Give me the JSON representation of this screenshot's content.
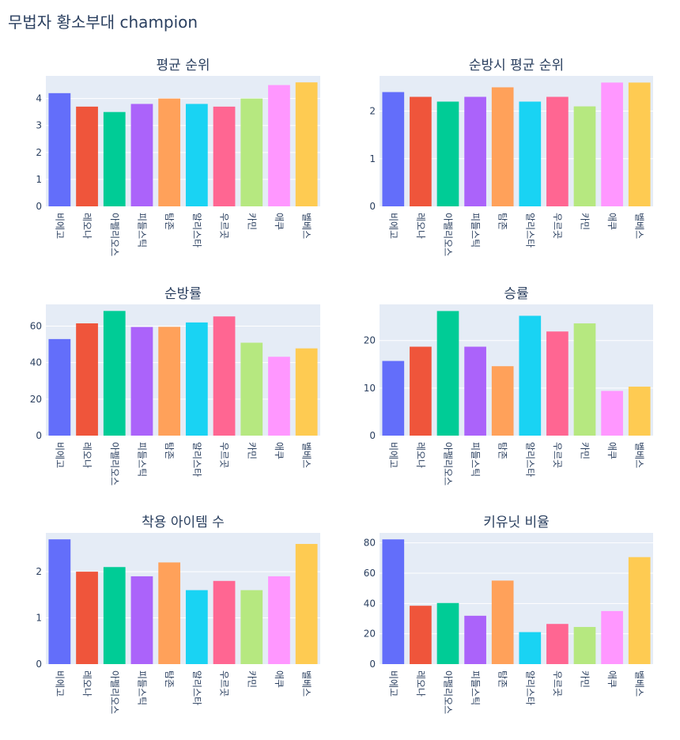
{
  "title": "무법자 황소부대 champion",
  "colors": [
    "#636efa",
    "#ef553b",
    "#00cc96",
    "#ab63fa",
    "#ffa15a",
    "#19d3f3",
    "#ff6692",
    "#b6e880",
    "#ff97ff",
    "#fecb52"
  ],
  "chart_data": [
    {
      "type": "bar",
      "title": "평균 순위",
      "categories": [
        "비에고",
        "레오나",
        "아펠리오스",
        "피들스틱",
        "탐존",
        "알리스타",
        "우르곳",
        "카민",
        "애쿠",
        "벨베스"
      ],
      "values": [
        4.2,
        3.7,
        3.5,
        3.8,
        4.0,
        3.8,
        3.7,
        4.0,
        4.5,
        4.6
      ],
      "ylim": [
        0,
        4.84
      ],
      "yticks": [
        0,
        1,
        2,
        3,
        4
      ]
    },
    {
      "type": "bar",
      "title": "순방시 평균 순위",
      "categories": [
        "비에고",
        "레오나",
        "아펠리오스",
        "피들스틱",
        "탐존",
        "알리스타",
        "우르곳",
        "카민",
        "애쿠",
        "벨베스"
      ],
      "values": [
        2.4,
        2.3,
        2.2,
        2.3,
        2.5,
        2.2,
        2.3,
        2.1,
        2.6,
        2.6
      ],
      "ylim": [
        0,
        2.74
      ],
      "yticks": [
        0,
        1,
        2
      ]
    },
    {
      "type": "bar",
      "title": "순방률",
      "categories": [
        "비에고",
        "레오나",
        "아펠리오스",
        "피들스틱",
        "탐존",
        "알리스타",
        "우르곳",
        "카민",
        "애쿠",
        "벨베스"
      ],
      "values": [
        52.9,
        61.5,
        68.3,
        59.5,
        59.6,
        62.0,
        65.3,
        50.9,
        43.2,
        47.8
      ],
      "ylim": [
        0,
        71.9
      ],
      "yticks": [
        0,
        20,
        40,
        60
      ]
    },
    {
      "type": "bar",
      "title": "승률",
      "categories": [
        "비에고",
        "레오나",
        "아펠리오스",
        "피들스틱",
        "탐존",
        "알리스타",
        "우르곳",
        "카민",
        "애쿠",
        "벨베스"
      ],
      "values": [
        15.7,
        18.7,
        26.2,
        18.7,
        14.6,
        25.2,
        21.9,
        23.6,
        9.4,
        10.3
      ],
      "ylim": [
        0,
        27.6
      ],
      "yticks": [
        0,
        10,
        20
      ]
    },
    {
      "type": "bar",
      "title": "착용 아이템 수",
      "categories": [
        "비에고",
        "레오나",
        "아펠리오스",
        "피들스틱",
        "탐존",
        "알리스타",
        "우르곳",
        "카민",
        "애쿠",
        "벨베스"
      ],
      "values": [
        2.7,
        2.0,
        2.1,
        1.9,
        2.2,
        1.6,
        1.8,
        1.6,
        1.9,
        2.6
      ],
      "ylim": [
        0,
        2.84
      ],
      "yticks": [
        0,
        1,
        2
      ]
    },
    {
      "type": "bar",
      "title": "키유닛 비율",
      "categories": [
        "비에고",
        "레오나",
        "아펠리오스",
        "피들스틱",
        "탐존",
        "알리스타",
        "우르곳",
        "카민",
        "애쿠",
        "벨베스"
      ],
      "values": [
        82.3,
        38.5,
        40.3,
        31.9,
        55.1,
        21.1,
        26.5,
        24.5,
        35.0,
        70.6
      ],
      "ylim": [
        0,
        86.6
      ],
      "yticks": [
        0,
        20,
        40,
        60,
        80
      ]
    }
  ]
}
